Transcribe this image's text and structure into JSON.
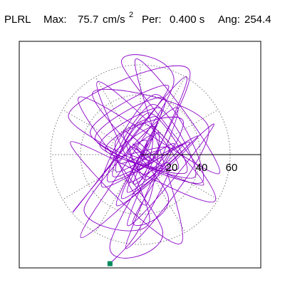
{
  "header": {
    "component": "PLRL",
    "max_label": "Max:",
    "max_value": "75.7",
    "max_unit": "cm/s",
    "max_unit_exponent": "2",
    "period_label": "Per:",
    "period_value": "0.400 s",
    "angle_label": "Ang:",
    "angle_value": "254.4"
  },
  "chart_data": {
    "type": "scatter",
    "subtype": "polar particle-motion orbit",
    "title": "PLRL   Max:   75.7 cm/s2  Per:  0.400 s   Ang: 254.4",
    "xlabel": "",
    "ylabel": "",
    "radial_ticks": [
      "20",
      "40",
      "60"
    ],
    "radial_tick_values": [
      20,
      40,
      60
    ],
    "radial_range": [
      0,
      80
    ],
    "grid": "dotted concentric rings at 20, 40, 60 with radial spokes every 30 degrees",
    "axis": "horizontal axis line from center toward 0 degrees (east)",
    "trace_color": "#8a00c8",
    "marker_color": "#008a5e",
    "peak": {
      "amplitude": 75.7,
      "angle_deg": 254.4,
      "x": -20.3,
      "y": -72.9
    },
    "series": [
      {
        "name": "",
        "x": [
          0.0,
          3.5,
          -2.1,
          6.4,
          -5.2,
          8.1,
          -9.0,
          4.2,
          -1.8,
          12.0,
          -14.5,
          7.6,
          2.3,
          -6.9,
          15.2,
          -11.3,
          3.0,
          18.5,
          -20.1,
          9.8,
          -4.4,
          22.6,
          -16.0,
          1.2,
          25.1,
          -23.4,
          11.9,
          -8.7,
          28.3,
          -18.2,
          5.6,
          30.5,
          -27.0,
          14.1,
          -12.5,
          33.2,
          -21.7,
          8.4,
          36.0,
          -30.1,
          16.8,
          -15.9,
          38.5,
          -25.6,
          10.2,
          41.0,
          -33.4,
          19.0,
          -45.2,
          30.7,
          -8.6,
          48.9,
          -39.8,
          22.1,
          -12.3,
          50.0,
          -46.7,
          27.5,
          -3.4,
          52.6,
          -41.2,
          14.8,
          -20.3,
          33.0,
          -48.1,
          42.3,
          -28.6,
          6.2,
          -37.5,
          24.9,
          -9.7,
          45.6,
          -31.8,
          18.4,
          -5.0,
          28.7,
          -16.4,
          3.6,
          12.2,
          -7.9,
          20.1,
          -2.4,
          -20.3
        ],
        "y": [
          0.0,
          -2.8,
          4.1,
          -5.6,
          7.2,
          -3.9,
          1.6,
          9.4,
          -10.3,
          2.7,
          -6.1,
          12.8,
          -13.5,
          5.4,
          -8.2,
          15.9,
          -16.7,
          4.8,
          -1.9,
          18.6,
          -19.8,
          7.5,
          -11.4,
          21.3,
          -9.6,
          3.2,
          24.7,
          -25.1,
          6.9,
          -14.6,
          27.8,
          -12.1,
          5.7,
          30.4,
          -29.2,
          8.5,
          -17.9,
          33.6,
          -15.3,
          10.1,
          36.9,
          -34.0,
          12.4,
          -21.5,
          40.2,
          -18.7,
          13.6,
          44.8,
          -38.6,
          52.1,
          -47.3,
          20.5,
          -55.4,
          46.9,
          60.2,
          -30.8,
          8.4,
          -58.9,
          63.5,
          -12.6,
          38.2,
          -50.7,
          -60.0,
          55.8,
          25.4,
          -20.2,
          48.6,
          -44.1,
          -35.7,
          31.2,
          -62.8,
          17.9,
          41.5,
          -27.3,
          -44.6,
          22.0,
          9.3,
          -33.8,
          14.6,
          -18.2,
          -6.4,
          -52.4,
          -72.9
        ]
      }
    ]
  }
}
